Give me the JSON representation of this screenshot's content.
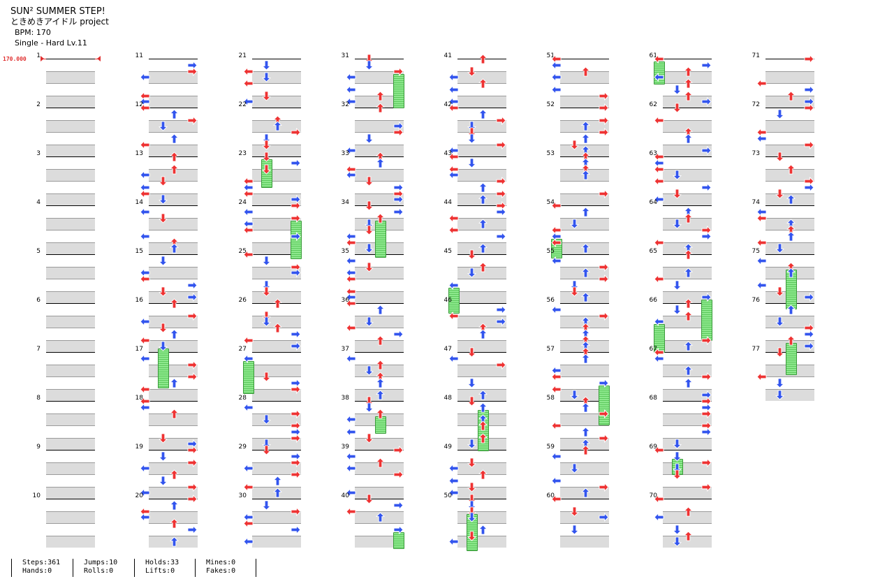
{
  "song": {
    "title": "SUN² SUMMER STEP!",
    "artist": "ときめきアイドル project",
    "bpm_label": "BPM: 170",
    "chart_label": "Single - Hard  Lv.11"
  },
  "bpm_marker": "170.000",
  "colors": {
    "left": "#3355ee",
    "right": "#ee3333",
    "hold": "#8de88d",
    "band": "#dcdcdc",
    "special": "#b040e0"
  },
  "measure_numbers": [
    "1",
    "2",
    "3",
    "4",
    "5",
    "6",
    "7",
    "8",
    "9",
    "10",
    "11",
    "12",
    "13",
    "14",
    "15",
    "16",
    "17",
    "18",
    "19",
    "20",
    "21",
    "22",
    "23",
    "24",
    "25",
    "26",
    "27",
    "28",
    "29",
    "30",
    "31",
    "32",
    "33",
    "34",
    "35",
    "36",
    "37",
    "38",
    "39",
    "40",
    "41",
    "42",
    "43",
    "44",
    "45",
    "46",
    "47",
    "48",
    "49",
    "50",
    "51",
    "52",
    "53",
    "54",
    "55",
    "56",
    "57",
    "58",
    "59",
    "60",
    "61",
    "62",
    "63",
    "64",
    "65",
    "66",
    "67",
    "68",
    "69",
    "70",
    "71",
    "72",
    "73",
    "74",
    "75",
    "76",
    "77"
  ],
  "stats": [
    {
      "top": "Steps:361",
      "bottom": "Hands:0"
    },
    {
      "top": "Jumps:10",
      "bottom": "Rolls:0"
    },
    {
      "top": "Holds:33",
      "bottom": "Lifts:0"
    },
    {
      "top": "Mines:0",
      "bottom": "Fakes:0"
    }
  ]
}
